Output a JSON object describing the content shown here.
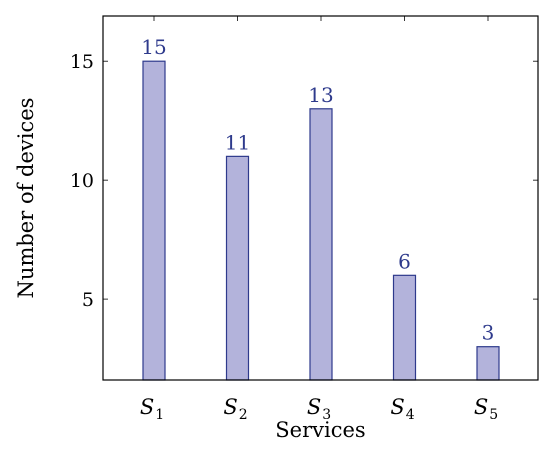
{
  "chart_data": {
    "type": "bar",
    "categories": [
      {
        "base": "S",
        "sub": "1"
      },
      {
        "base": "S",
        "sub": "2"
      },
      {
        "base": "S",
        "sub": "3"
      },
      {
        "base": "S",
        "sub": "4"
      },
      {
        "base": "S",
        "sub": "5"
      }
    ],
    "values": [
      15,
      11,
      13,
      6,
      3
    ],
    "data_labels": [
      "15",
      "11",
      "13",
      "6",
      "3"
    ],
    "xlabel": "Services",
    "ylabel": "Number of devices",
    "yticks": [
      5,
      10,
      15
    ],
    "ylim": [
      1.6,
      16.9
    ],
    "grid": false,
    "bar_fill": "#b3b3db",
    "bar_stroke": "#2e3a8c",
    "label_color": "#2e3a8c"
  }
}
